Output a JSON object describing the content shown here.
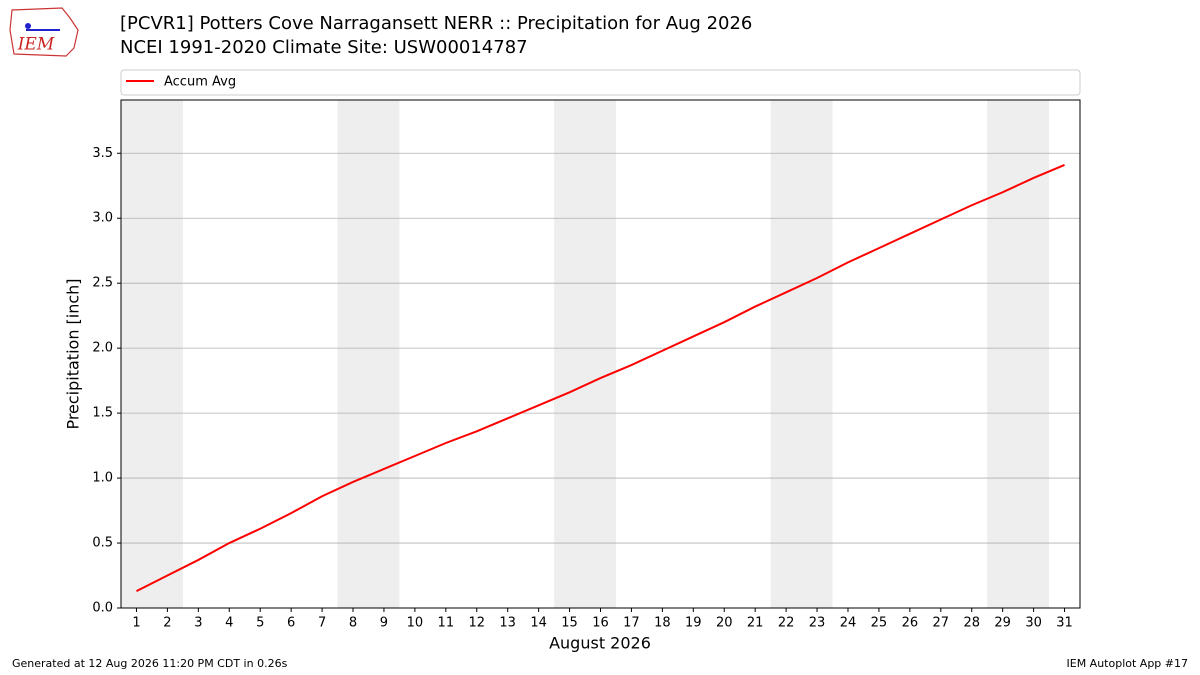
{
  "logo_text": "IEM",
  "footer_left": "Generated at 12 Aug 2026 11:20 PM CDT in 0.26s",
  "footer_right": "IEM Autoplot App #17",
  "chart_data": {
    "type": "line",
    "title": "[PCVR1] Potters Cove Narragansett NERR :: Precipitation for Aug 2026",
    "subtitle": "NCEI 1991-2020 Climate Site: USW00014787",
    "x_label": "August 2026",
    "y_label": "Precipitation [inch]",
    "x": [
      1,
      2,
      3,
      4,
      5,
      6,
      7,
      8,
      9,
      10,
      11,
      12,
      13,
      14,
      15,
      16,
      17,
      18,
      19,
      20,
      21,
      22,
      23,
      24,
      25,
      26,
      27,
      28,
      29,
      30,
      31
    ],
    "series": [
      {
        "name": "Accum Avg",
        "color": "#ff0000",
        "values": [
          0.13,
          0.25,
          0.37,
          0.5,
          0.61,
          0.73,
          0.86,
          0.97,
          1.07,
          1.17,
          1.27,
          1.36,
          1.46,
          1.56,
          1.66,
          1.77,
          1.87,
          1.98,
          2.09,
          2.2,
          2.32,
          2.43,
          2.54,
          2.66,
          2.77,
          2.88,
          2.99,
          3.1,
          3.2,
          3.31,
          3.41
        ]
      }
    ],
    "xlim": [
      0.5,
      31.5
    ],
    "xticks": [
      1,
      2,
      3,
      4,
      5,
      6,
      7,
      8,
      9,
      10,
      11,
      12,
      13,
      14,
      15,
      16,
      17,
      18,
      19,
      20,
      21,
      22,
      23,
      24,
      25,
      26,
      27,
      28,
      29,
      30,
      31
    ],
    "ylim": [
      0,
      3.91
    ],
    "yticks": [
      {
        "value": 0,
        "label": "0.0"
      },
      {
        "value": 0.5,
        "label": "0.5"
      },
      {
        "value": 1,
        "label": "1.0"
      },
      {
        "value": 1.5,
        "label": "1.5"
      },
      {
        "value": 2,
        "label": "2.0"
      },
      {
        "value": 2.5,
        "label": "2.5"
      },
      {
        "value": 3,
        "label": "3.0"
      },
      {
        "value": 3.5,
        "label": "3.5"
      }
    ],
    "grid": true,
    "shaded_days": [
      1,
      2,
      8,
      9,
      15,
      16,
      22,
      23,
      29,
      30
    ],
    "shade_color": "#eeeeee",
    "legend": "top"
  }
}
